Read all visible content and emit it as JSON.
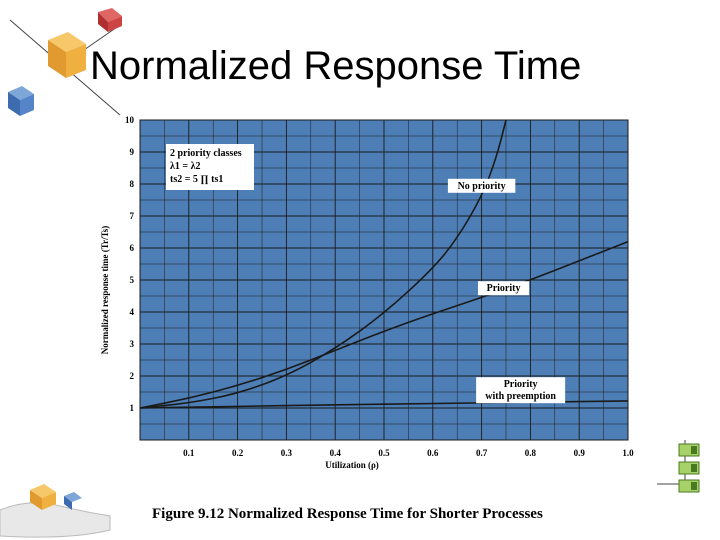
{
  "slide": {
    "title": "Normalized Response Time",
    "caption": "Figure 9.12 Normalized Response Time for Shorter Processes"
  },
  "colors": {
    "plot_bg": "#4d7fb6",
    "grid": "#1a1a1a",
    "curve": "#1a1a1a",
    "box_bg": "#ffffff"
  },
  "icons": [
    "cube-cluster-icon",
    "hand-with-cubes-icon",
    "flowchart-icon"
  ],
  "chart_data": {
    "type": "line",
    "title": "",
    "xlabel": "Utilization (ρ)",
    "ylabel": "Normalized response time (Tr/Ts)",
    "xlim": [
      0,
      1.0
    ],
    "ylim": [
      0,
      10
    ],
    "xticks": [
      "0.1",
      "0.2",
      "0.3",
      "0.4",
      "0.5",
      "0.6",
      "0.7",
      "0.8",
      "0.9",
      "1.0"
    ],
    "yticks": [
      "1",
      "2",
      "3",
      "4",
      "5",
      "6",
      "7",
      "8",
      "9",
      "10"
    ],
    "grid": true,
    "legend_box": {
      "placement": "top-left",
      "lines": [
        "2 priority classes",
        "λ1 = λ2",
        "ts2 = 5 ∏ ts1"
      ]
    },
    "series": [
      {
        "name": "No priority",
        "x": [
          0,
          0.1,
          0.2,
          0.3,
          0.4,
          0.5,
          0.6,
          0.65,
          0.7,
          0.73,
          0.75
        ],
        "y": [
          1,
          1.15,
          1.45,
          2.0,
          2.85,
          3.95,
          5.35,
          6.3,
          7.6,
          8.8,
          10.0
        ]
      },
      {
        "name": "Priority",
        "x": [
          0,
          0.1,
          0.2,
          0.3,
          0.4,
          0.5,
          0.6,
          0.7,
          0.8,
          0.9,
          1.0
        ],
        "y": [
          1,
          1.3,
          1.7,
          2.2,
          2.8,
          3.4,
          3.95,
          4.45,
          5.0,
          5.6,
          6.2
        ]
      },
      {
        "name": "Priority with preemption",
        "x": [
          0,
          0.2,
          0.4,
          0.6,
          0.8,
          1.0
        ],
        "y": [
          1,
          1.05,
          1.1,
          1.14,
          1.18,
          1.22
        ]
      }
    ],
    "series_labels": [
      {
        "name": "No priority",
        "x": 0.7,
        "y": 7.85
      },
      {
        "name": "Priority",
        "x": 0.745,
        "y": 4.65
      },
      {
        "name": "Priority with preemption",
        "x": 0.78,
        "y": 1.65
      }
    ]
  }
}
